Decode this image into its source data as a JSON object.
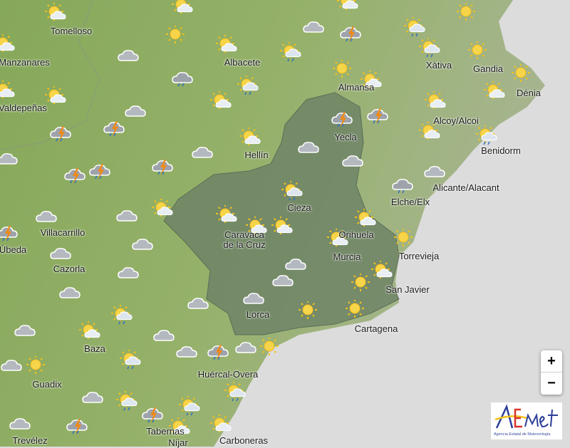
{
  "map": {
    "land_color": "#8fae62",
    "sea_color": "#dcdcdc",
    "region_color": "#6f8466",
    "region_name": "Región de Murcia"
  },
  "labels": [
    "Tomelloso",
    "Manzanares",
    "Albacete",
    "Almansa",
    "Xàtiva",
    "Gandia",
    "Dénia",
    "Valdepeñas",
    "Alcoy/Alcoi",
    "Yecla",
    "Hellín",
    "Benidorm",
    "Alicante/Alacant",
    "Elche/Elx",
    "Cieza",
    "Villacarrillo",
    "Úbeda",
    "Caravaca de la Cruz",
    "Orihuela",
    "Murcia",
    "Torrevieja",
    "Cazorla",
    "San Javier",
    "Lorca",
    "Cartagena",
    "Baza",
    "Huércal-Overa",
    "Guadix",
    "Tabernas",
    "Níjar",
    "Carboneras",
    "Trevélez"
  ],
  "icons": [
    "sun-cloud",
    "sun-cloud",
    "sun-cloud",
    "sun",
    "sun-cloud",
    "cloud",
    "sun-cloud",
    "cloud",
    "storm",
    "sun-rain",
    "sun",
    "sun-rain",
    "sun",
    "sun-rain",
    "sun",
    "sun-cloud",
    "sun",
    "sun-cloud",
    "sun-cloud",
    "cloud-rain",
    "sun-rain",
    "sun-cloud",
    "sun-cloud",
    "sun-cloud",
    "cloud",
    "storm",
    "storm",
    "storm",
    "storm",
    "sun-cloud",
    "sun-rain",
    "sun-cloud",
    "cloud",
    "cloud",
    "cloud",
    "cloud",
    "storm",
    "storm",
    "storm",
    "cloud-rain",
    "cloud",
    "sun-rain",
    "sun-cloud",
    "cloud",
    "cloud",
    "storm",
    "sun-cloud",
    "sun-cloud",
    "sun-cloud",
    "sun-cloud",
    "sun",
    "sun-cloud",
    "cloud",
    "cloud",
    "cloud",
    "cloud",
    "sun-cloud",
    "cloud",
    "sun",
    "cloud",
    "cloud",
    "cloud",
    "sun-rain",
    "sun",
    "sun",
    "cloud",
    "sun-cloud",
    "cloud",
    "cloud",
    "storm",
    "cloud",
    "sun",
    "cloud",
    "sun",
    "sun-rain",
    "cloud",
    "sun-rain",
    "sun-rain",
    "sun-rain",
    "storm",
    "storm",
    "cloud",
    "sun-cloud",
    "sun-cloud"
  ],
  "controls": {
    "zoom_in": "+",
    "zoom_out": "−"
  },
  "logo": {
    "text": "AEMet",
    "subtitle": "Agencia Estatal de Meteorología"
  }
}
